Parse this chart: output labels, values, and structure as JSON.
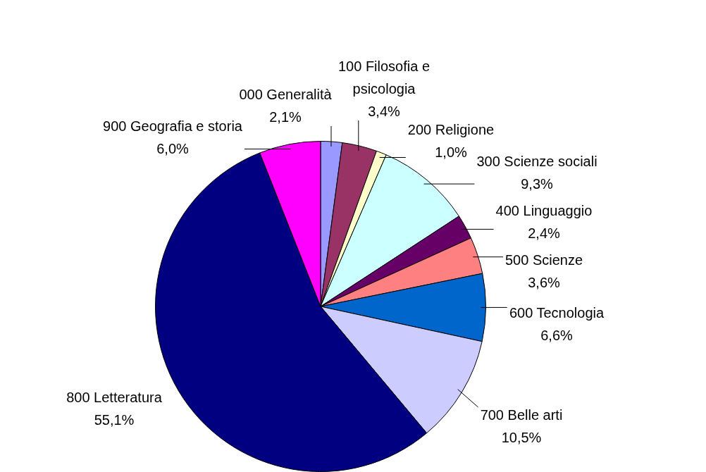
{
  "chart_data": {
    "type": "pie",
    "categories": [
      "000 Generalità",
      "100 Filosofia e psicologia",
      "200 Religione",
      "300 Scienze sociali",
      "400 Linguaggio",
      "500 Scienze",
      "600 Tecnologia",
      "700 Belle arti",
      "800 Letteratura",
      "900 Geografia e storia"
    ],
    "values": [
      2.1,
      3.4,
      1.0,
      9.3,
      2.4,
      3.6,
      6.6,
      10.5,
      55.1,
      6.0
    ],
    "colors": [
      "#9999ff",
      "#993366",
      "#ffffcc",
      "#ccffff",
      "#660066",
      "#ff8080",
      "#0066cc",
      "#ccccff",
      "#000080",
      "#ff00ff"
    ],
    "value_labels": [
      "2,1%",
      "3,4%",
      "1,0%",
      "9,3%",
      "2,4%",
      "3,6%",
      "6,6%",
      "10,5%",
      "55,1%",
      "6,0%"
    ],
    "legend": false
  }
}
